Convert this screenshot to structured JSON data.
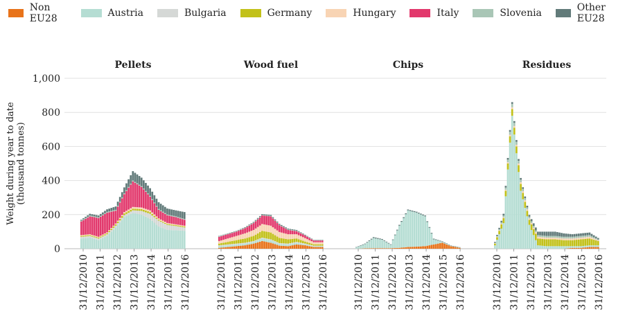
{
  "chart_data": {
    "type": "area",
    "stacked": true,
    "ylabel": "Weight during year to date (thousand tonnes)",
    "ylim": [
      0,
      1000
    ],
    "yticks": [
      "0",
      "200",
      "400",
      "600",
      "800",
      "1,000"
    ],
    "grid": true,
    "legend_position": "top",
    "colors": {
      "Non EU28": "#e8731a",
      "Austria": "#b5ddd3",
      "Bulgaria": "#d5d8d6",
      "Germany": "#c2c11a",
      "Hungary": "#f8d4b4",
      "Italy": "#e2386c",
      "Slovenia": "#a9c6b6",
      "Other EU28": "#627b7a"
    },
    "series_names": [
      "Non EU28",
      "Austria",
      "Bulgaria",
      "Germany",
      "Hungary",
      "Italy",
      "Slovenia",
      "Other EU28"
    ],
    "x_ticks": [
      "31/12/2010",
      "31/12/2011",
      "31/12/2012",
      "31/12/2013",
      "31/12/2014",
      "31/12/2015",
      "31/12/2016"
    ],
    "x": [
      "31/12/2010",
      "30/06/2011",
      "31/12/2011",
      "30/06/2012",
      "31/12/2012",
      "30/06/2013",
      "31/12/2013",
      "30/06/2014",
      "31/12/2014",
      "30/06/2015",
      "31/12/2015",
      "30/06/2016",
      "31/12/2016"
    ],
    "panels": [
      {
        "title": "Pellets",
        "series": [
          {
            "name": "Non EU28",
            "values": [
              0,
              0,
              0,
              0,
              0,
              0,
              0,
              0,
              0,
              0,
              0,
              0,
              0
            ]
          },
          {
            "name": "Austria",
            "values": [
              60,
              65,
              50,
              75,
              125,
              185,
              210,
              200,
              175,
              130,
              110,
              108,
              105
            ]
          },
          {
            "name": "Bulgaria",
            "values": [
              10,
              10,
              10,
              10,
              10,
              12,
              15,
              22,
              30,
              35,
              30,
              25,
              20
            ]
          },
          {
            "name": "Germany",
            "values": [
              5,
              5,
              5,
              6,
              8,
              10,
              10,
              10,
              10,
              5,
              5,
              5,
              5
            ]
          },
          {
            "name": "Hungary",
            "values": [
              5,
              5,
              5,
              5,
              5,
              8,
              10,
              10,
              10,
              8,
              6,
              5,
              5
            ]
          },
          {
            "name": "Italy",
            "values": [
              80,
              105,
              110,
              115,
              75,
              105,
              150,
              120,
              80,
              50,
              45,
              42,
              35
            ]
          },
          {
            "name": "Slovenia",
            "values": [
              5,
              5,
              5,
              5,
              5,
              5,
              5,
              5,
              5,
              5,
              5,
              5,
              5
            ]
          },
          {
            "name": "Other EU28",
            "values": [
              5,
              10,
              10,
              15,
              20,
              35,
              55,
              50,
              45,
              40,
              35,
              35,
              40
            ]
          }
        ]
      },
      {
        "title": "Wood fuel",
        "series": [
          {
            "name": "Non EU28",
            "values": [
              5,
              10,
              15,
              20,
              30,
              45,
              35,
              18,
              15,
              25,
              20,
              10,
              10
            ]
          },
          {
            "name": "Austria",
            "values": [
              10,
              10,
              10,
              10,
              10,
              15,
              15,
              10,
              10,
              10,
              5,
              5,
              5
            ]
          },
          {
            "name": "Bulgaria",
            "values": [
              5,
              5,
              5,
              5,
              5,
              5,
              5,
              5,
              5,
              5,
              5,
              3,
              3
            ]
          },
          {
            "name": "Germany",
            "values": [
              10,
              15,
              20,
              25,
              30,
              40,
              40,
              30,
              25,
              20,
              12,
              8,
              8
            ]
          },
          {
            "name": "Hungary",
            "values": [
              15,
              20,
              25,
              30,
              35,
              40,
              40,
              35,
              30,
              25,
              20,
              12,
              12
            ]
          },
          {
            "name": "Italy",
            "values": [
              25,
              25,
              25,
              30,
              40,
              50,
              55,
              40,
              25,
              18,
              15,
              10,
              10
            ]
          },
          {
            "name": "Slovenia",
            "values": [
              3,
              3,
              3,
              3,
              3,
              3,
              3,
              3,
              3,
              3,
              2,
              2,
              2
            ]
          },
          {
            "name": "Other EU28",
            "values": [
              2,
              2,
              2,
              3,
              4,
              5,
              5,
              5,
              5,
              4,
              3,
              2,
              2
            ]
          }
        ]
      },
      {
        "title": "Chips",
        "series": [
          {
            "name": "Non EU28",
            "values": [
              0,
              2,
              3,
              3,
              3,
              5,
              10,
              12,
              15,
              25,
              35,
              15,
              5
            ]
          },
          {
            "name": "Austria",
            "values": [
              8,
              25,
              60,
              50,
              20,
              130,
              215,
              200,
              175,
              30,
              5,
              2,
              2
            ]
          },
          {
            "name": "Bulgaria",
            "values": [
              0,
              0,
              0,
              0,
              0,
              0,
              0,
              0,
              0,
              0,
              0,
              0,
              0
            ]
          },
          {
            "name": "Germany",
            "values": [
              0,
              0,
              0,
              0,
              0,
              0,
              0,
              0,
              0,
              0,
              0,
              0,
              0
            ]
          },
          {
            "name": "Hungary",
            "values": [
              0,
              0,
              0,
              0,
              0,
              0,
              0,
              0,
              0,
              0,
              0,
              0,
              0
            ]
          },
          {
            "name": "Italy",
            "values": [
              0,
              0,
              0,
              0,
              0,
              0,
              0,
              0,
              0,
              0,
              0,
              0,
              0
            ]
          },
          {
            "name": "Slovenia",
            "values": [
              0,
              0,
              0,
              0,
              0,
              0,
              0,
              0,
              0,
              0,
              0,
              0,
              0
            ]
          },
          {
            "name": "Other EU28",
            "values": [
              2,
              3,
              5,
              4,
              3,
              5,
              5,
              5,
              5,
              4,
              3,
              2,
              2
            ]
          }
        ]
      },
      {
        "title": "Residues",
        "series": [
          {
            "name": "Non EU28",
            "values": [
              0,
              0,
              0,
              0,
              0,
              0,
              0,
              0,
              0,
              5,
              5,
              10,
              10
            ]
          },
          {
            "name": "Austria",
            "values": [
              20,
              150,
              780,
              340,
              140,
              20,
              15,
              15,
              15,
              10,
              10,
              10,
              10
            ]
          },
          {
            "name": "Bulgaria",
            "values": [
              0,
              0,
              0,
              0,
              0,
              0,
              0,
              0,
              0,
              0,
              0,
              0,
              0
            ]
          },
          {
            "name": "Germany",
            "values": [
              10,
              30,
              40,
              40,
              30,
              40,
              40,
              40,
              35,
              35,
              40,
              40,
              25
            ]
          },
          {
            "name": "Hungary",
            "values": [
              2,
              5,
              10,
              10,
              8,
              10,
              10,
              10,
              10,
              10,
              10,
              10,
              5
            ]
          },
          {
            "name": "Italy",
            "values": [
              0,
              0,
              0,
              0,
              0,
              0,
              0,
              0,
              0,
              0,
              0,
              0,
              0
            ]
          },
          {
            "name": "Slovenia",
            "values": [
              3,
              10,
              20,
              15,
              10,
              10,
              10,
              10,
              10,
              10,
              10,
              10,
              5
            ]
          },
          {
            "name": "Other EU28",
            "values": [
              5,
              10,
              10,
              10,
              10,
              20,
              25,
              25,
              20,
              15,
              15,
              15,
              8
            ]
          }
        ]
      }
    ]
  }
}
